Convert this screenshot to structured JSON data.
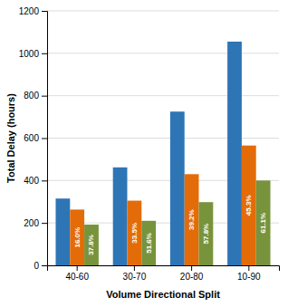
{
  "chart_data": {
    "type": "bar",
    "categories": [
      "40-60",
      "30-70",
      "20-80",
      "10-90"
    ],
    "xlabel": "Volume Directional Split",
    "ylabel": "Total Delay (hours)",
    "ylim": [
      0,
      1200
    ],
    "yticks": [
      0,
      200,
      400,
      600,
      800,
      1000,
      1200
    ],
    "grid": true,
    "series": [
      {
        "color": "#2E75B6",
        "values": [
          315,
          462,
          725,
          1055
        ]
      },
      {
        "color": "#E36C09",
        "values": [
          263,
          305,
          430,
          565
        ],
        "annotations": [
          "16.0%",
          "33.5%",
          "39.2%",
          "45.3%"
        ]
      },
      {
        "color": "#77933C",
        "values": [
          192,
          210,
          298,
          400
        ],
        "annotations": [
          "37.8%",
          "51.6%",
          "57.8%",
          "61.1%"
        ]
      }
    ]
  }
}
